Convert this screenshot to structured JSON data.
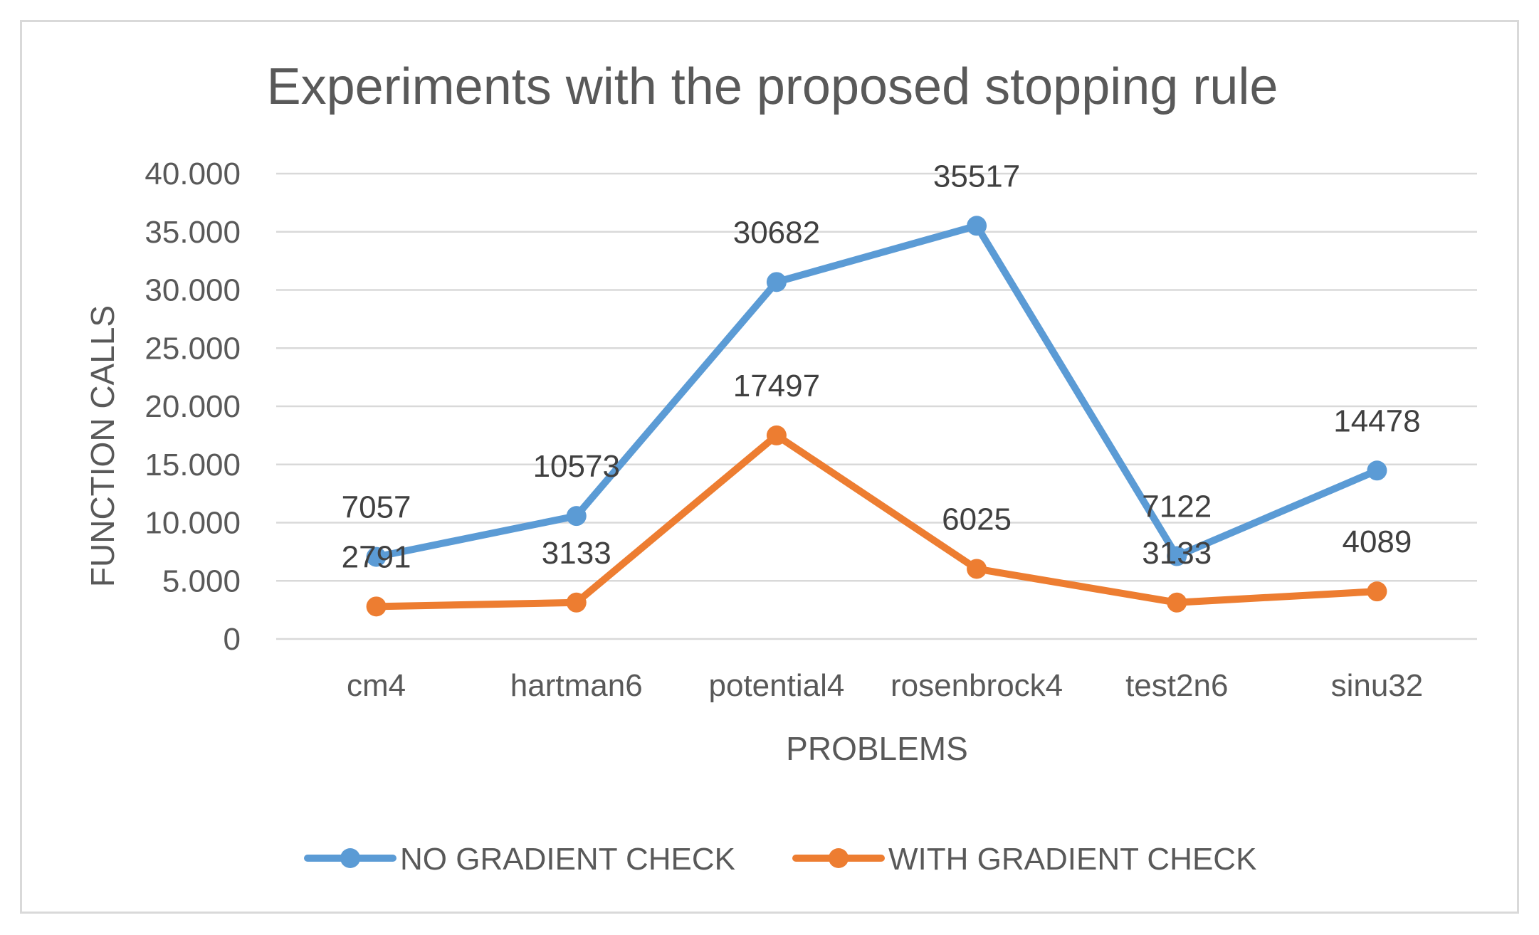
{
  "chart_data": {
    "type": "line",
    "title": "Experiments with the proposed stopping rule",
    "xlabel": "PROBLEMS",
    "ylabel": "FUNCTION CALLS",
    "ylim": [
      0,
      40000
    ],
    "yticks": [
      0,
      5000,
      10000,
      15000,
      20000,
      25000,
      30000,
      35000,
      40000
    ],
    "ytick_labels": [
      "0",
      "5.000",
      "10.000",
      "15.000",
      "20.000",
      "25.000",
      "30.000",
      "35.000",
      "40.000"
    ],
    "categories": [
      "cm4",
      "hartman6",
      "potential4",
      "rosenbrock4",
      "test2n6",
      "sinu32"
    ],
    "series": [
      {
        "name": "NO GRADIENT CHECK",
        "color": "#5b9bd5",
        "values": [
          7057,
          10573,
          30682,
          35517,
          7122,
          14478
        ],
        "labels": [
          "7057",
          "10573",
          "30682",
          "35517",
          "7122",
          "14478"
        ]
      },
      {
        "name": "WITH GRADIENT CHECK",
        "color": "#ed7d31",
        "values": [
          2791,
          3133,
          17497,
          6025,
          3133,
          4089
        ],
        "labels": [
          "2791",
          "3133",
          "17497",
          "6025",
          "3133",
          "4089"
        ]
      }
    ],
    "grid": true,
    "legend_position": "bottom"
  }
}
